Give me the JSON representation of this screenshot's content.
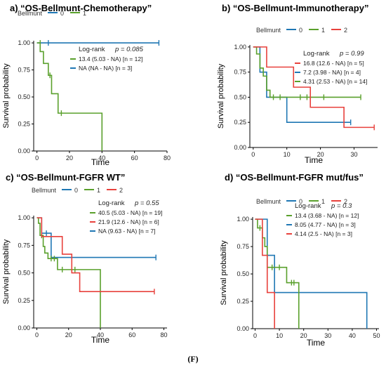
{
  "figure_label": "(F)",
  "chart_data": [
    {
      "type": "line",
      "title": "a) “OS-Bellmunt-Chemotherapy”",
      "legend_title": "Bellmunt",
      "legend_labels": [
        "0",
        "1"
      ],
      "xlabel": "Time",
      "ylabel": "Survival probability",
      "xlim": [
        -2,
        80
      ],
      "ylim": [
        0,
        1.02
      ],
      "xticks": [
        0,
        20,
        40,
        60,
        80
      ],
      "yticks": [
        0.0,
        0.25,
        0.5,
        0.75,
        1.0
      ],
      "ytick_labels": [
        "0.00",
        "0.25",
        "0.50",
        "0.75",
        "1.00"
      ],
      "stats": {
        "logrank_label": "Log-rank",
        "p_label": "p = 0.085"
      },
      "series": [
        {
          "name": "0",
          "color": "#1f77b4",
          "times": [
            0,
            75
          ],
          "surv": [
            1.0,
            1.0
          ],
          "censor_t": [
            7,
            75
          ],
          "censor_s": [
            1.0,
            1.0
          ],
          "note": "NA (NA - NA) [n = 3]"
        },
        {
          "name": "1",
          "color": "#5aa02c",
          "times": [
            0,
            2,
            4,
            7,
            9,
            13,
            40
          ],
          "surv": [
            1.0,
            0.92,
            0.81,
            0.7,
            0.53,
            0.35,
            0.0
          ],
          "censor_t": [
            2,
            8,
            15
          ],
          "censor_s": [
            1.0,
            0.7,
            0.35
          ],
          "note": "13.4 (5.03 - NA) [n = 12]"
        }
      ]
    },
    {
      "type": "line",
      "title": "b) “OS-Bellmunt-Immunotherapy”",
      "legend_title": "Bellmunt",
      "legend_labels": [
        "0",
        "1",
        "2"
      ],
      "xlabel": "Time",
      "ylabel": "Survival probability",
      "xlim": [
        -1,
        37
      ],
      "ylim": [
        0,
        1.02
      ],
      "xticks": [
        0,
        10,
        20,
        30
      ],
      "yticks": [
        0.0,
        0.25,
        0.5,
        0.75,
        1.0
      ],
      "ytick_labels": [
        "0.00",
        "0.25",
        "0.50",
        "0.75",
        "1.00"
      ],
      "stats": {
        "logrank_label": "Log-rank",
        "p_label": "p = 0.99"
      },
      "series": [
        {
          "name": "0",
          "color": "#1f77b4",
          "times": [
            0,
            2,
            4,
            10,
            29
          ],
          "surv": [
            1.0,
            0.75,
            0.5,
            0.25,
            0.25
          ],
          "censor_t": [
            29
          ],
          "censor_s": [
            0.25
          ],
          "note": "7.2 (3.98 - NA) [n = 4]"
        },
        {
          "name": "1",
          "color": "#5aa02c",
          "times": [
            0,
            1,
            2,
            3,
            4,
            5,
            32
          ],
          "surv": [
            1.0,
            0.93,
            0.79,
            0.71,
            0.57,
            0.5,
            0.5
          ],
          "censor_t": [
            6,
            8,
            14,
            16,
            21,
            32
          ],
          "censor_s": [
            0.5,
            0.5,
            0.5,
            0.5,
            0.5,
            0.5
          ],
          "note": "4.31 (2.53 - NA) [n = 14]"
        },
        {
          "name": "2",
          "color": "#e8413c",
          "times": [
            0,
            4,
            12,
            17,
            27,
            36
          ],
          "surv": [
            1.0,
            0.8,
            0.6,
            0.4,
            0.2,
            0.2
          ],
          "censor_t": [
            36
          ],
          "censor_s": [
            0.2
          ],
          "note": "16.8 (12.6 - NA) [n = 5]"
        }
      ]
    },
    {
      "type": "line",
      "title": "c) “OS-Bellmunt-FGFR WT”",
      "legend_title": "Bellmunt",
      "legend_labels": [
        "0",
        "1",
        "2"
      ],
      "xlabel": "Time",
      "ylabel": "Survival probability",
      "xlim": [
        -2,
        82
      ],
      "ylim": [
        0,
        1.02
      ],
      "xticks": [
        0,
        20,
        40,
        60,
        80
      ],
      "yticks": [
        0.0,
        0.25,
        0.5,
        0.75,
        1.0
      ],
      "ytick_labels": [
        "0.00",
        "0.25",
        "0.50",
        "0.75",
        "1.00"
      ],
      "stats": {
        "logrank_label": "Log-rank",
        "p_label": "p = 0.55"
      },
      "series": [
        {
          "name": "0",
          "color": "#1f77b4",
          "times": [
            0,
            3,
            9,
            75
          ],
          "surv": [
            1.0,
            0.86,
            0.64,
            0.64
          ],
          "censor_t": [
            6,
            75
          ],
          "censor_s": [
            0.86,
            0.64
          ],
          "note": "NA (9.63 - NA) [n = 7]"
        },
        {
          "name": "1",
          "color": "#5aa02c",
          "times": [
            0,
            1,
            2,
            4,
            5,
            7,
            13,
            40
          ],
          "surv": [
            1.0,
            0.95,
            0.84,
            0.74,
            0.68,
            0.63,
            0.53,
            0.0
          ],
          "censor_t": [
            3,
            9,
            11,
            16,
            22,
            24
          ],
          "censor_s": [
            0.84,
            0.63,
            0.63,
            0.53,
            0.53,
            0.53
          ],
          "note": "40.5 (5.03 - NA) [n = 19]"
        },
        {
          "name": "2",
          "color": "#e8413c",
          "times": [
            0,
            3,
            16,
            22,
            27,
            74
          ],
          "surv": [
            1.0,
            0.83,
            0.67,
            0.5,
            0.33,
            0.33
          ],
          "censor_t": [
            74
          ],
          "censor_s": [
            0.33
          ],
          "note": "21.9 (12.6 - NA) [n = 6]"
        }
      ]
    },
    {
      "type": "line",
      "title": "d) “OS-Bellmunt-FGFR mut/fus”",
      "legend_title": "Bellmunt",
      "legend_labels": [
        "0",
        "1",
        "2"
      ],
      "xlabel": "Time",
      "ylabel": "Survival probability",
      "xlim": [
        -1,
        51
      ],
      "ylim": [
        0,
        1.02
      ],
      "xticks": [
        0,
        10,
        20,
        30,
        40,
        50
      ],
      "yticks": [
        0.0,
        0.25,
        0.5,
        0.75,
        1.0
      ],
      "ytick_labels": [
        "0.00",
        "0.25",
        "0.50",
        "0.75",
        "1.00"
      ],
      "stats": {
        "logrank_label": "Log-rank",
        "p_label": "p = 0.3"
      },
      "series": [
        {
          "name": "0",
          "color": "#1f77b4",
          "times": [
            0,
            5,
            8,
            46
          ],
          "surv": [
            1.0,
            0.67,
            0.33,
            0.0
          ],
          "censor_t": [],
          "censor_s": [],
          "note": "8.05 (4.77 - NA) [n = 3]"
        },
        {
          "name": "1",
          "color": "#5aa02c",
          "times": [
            0,
            1,
            3,
            4,
            5,
            13,
            18
          ],
          "surv": [
            1.0,
            0.92,
            0.83,
            0.75,
            0.56,
            0.42,
            0.0
          ],
          "censor_t": [
            2,
            7,
            10,
            15,
            16
          ],
          "censor_s": [
            0.92,
            0.56,
            0.56,
            0.42,
            0.42
          ],
          "note": "13.4 (3.68 - NA) [n = 12]"
        },
        {
          "name": "2",
          "color": "#e8413c",
          "times": [
            0,
            3,
            5,
            8
          ],
          "surv": [
            1.0,
            0.67,
            0.33,
            0.0
          ],
          "censor_t": [],
          "censor_s": [],
          "note": "4.14 (2.5 - NA) [n = 3]"
        }
      ]
    }
  ]
}
